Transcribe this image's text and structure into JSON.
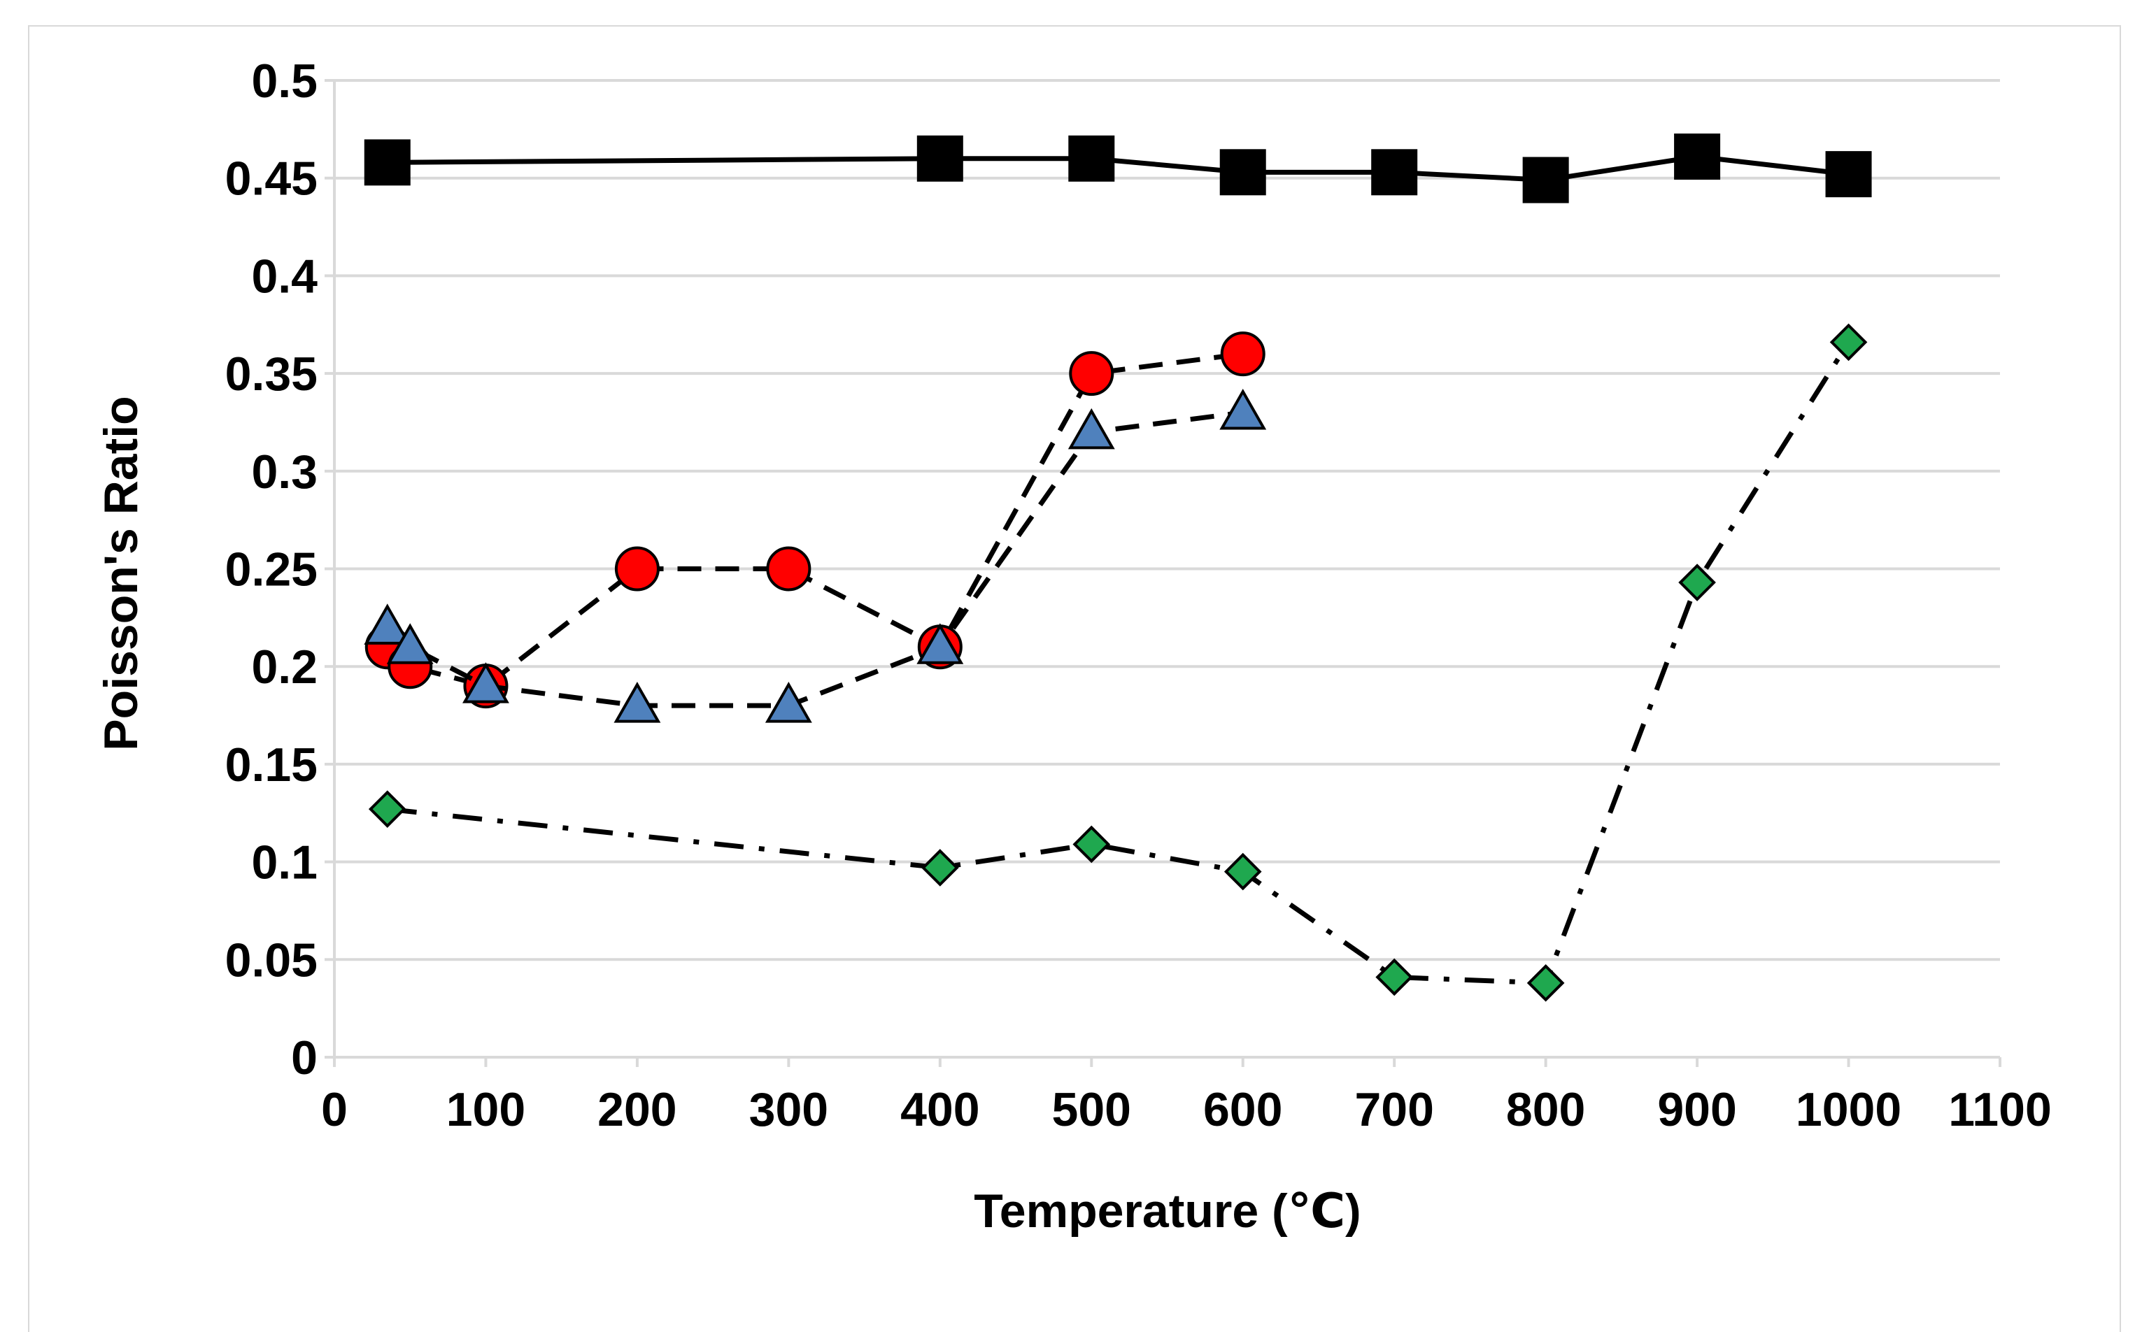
{
  "chart_data": {
    "type": "line",
    "title": "",
    "xlabel": "Temperature (℃)",
    "ylabel": "Poisson's Ratio",
    "xlim": [
      0,
      1100
    ],
    "ylim": [
      0,
      0.5
    ],
    "xticks": [
      "0",
      "100",
      "200",
      "300",
      "400",
      "500",
      "600",
      "700",
      "800",
      "900",
      "1000",
      "1100"
    ],
    "yticks": [
      "0",
      "0.05",
      "0.1",
      "0.15",
      "0.2",
      "0.25",
      "0.3",
      "0.35",
      "0.4",
      "0.45",
      "0.5"
    ],
    "grid": "horizontal",
    "legend": "none",
    "series": [
      {
        "name": "black squares",
        "marker": "square",
        "line": "solid",
        "color": "#000000",
        "x": [
          35,
          400,
          500,
          600,
          700,
          800,
          900,
          1000
        ],
        "y": [
          0.458,
          0.46,
          0.46,
          0.453,
          0.453,
          0.449,
          0.461,
          0.452
        ]
      },
      {
        "name": "red circles",
        "marker": "circle",
        "line": "dashed",
        "color": "#ff0000",
        "x": [
          35,
          50,
          100,
          200,
          300,
          400,
          500,
          600
        ],
        "y": [
          0.21,
          0.2,
          0.19,
          0.25,
          0.25,
          0.21,
          0.35,
          0.36
        ]
      },
      {
        "name": "blue triangles",
        "marker": "triangle",
        "line": "dashed",
        "color": "#4f81bd",
        "x": [
          35,
          50,
          100,
          200,
          300,
          400,
          500,
          600
        ],
        "y": [
          0.22,
          0.21,
          0.19,
          0.18,
          0.18,
          0.21,
          0.32,
          0.33
        ]
      },
      {
        "name": "green diamonds",
        "marker": "diamond",
        "line": "dash-dot",
        "color": "#1fa84f",
        "x": [
          35,
          400,
          500,
          600,
          700,
          800,
          900,
          1000
        ],
        "y": [
          0.127,
          0.097,
          0.109,
          0.095,
          0.041,
          0.038,
          0.243,
          0.366
        ]
      }
    ]
  }
}
